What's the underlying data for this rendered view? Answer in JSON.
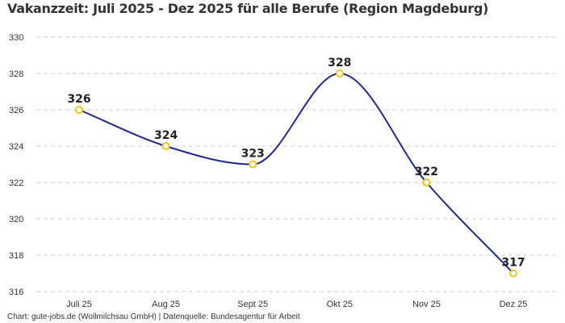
{
  "chart_data": {
    "type": "line",
    "title": "Vakanzzeit: Juli 2025 - Dez 2025 für alle Berufe (Region Magdeburg)",
    "categories": [
      "Juli 25",
      "Aug 25",
      "Sept 25",
      "Okt 25",
      "Nov 25",
      "Dez 25"
    ],
    "values": [
      326,
      324,
      323,
      328,
      322,
      317
    ],
    "ylim": [
      316,
      330
    ],
    "yticks": [
      316,
      318,
      320,
      322,
      324,
      326,
      328,
      330
    ],
    "xlabel": "",
    "ylabel": "",
    "grid": "horizontal dashed",
    "smooth": true,
    "colors": {
      "line": "#1c2a8a",
      "marker": "#f5c21b",
      "grid": "#cccccc"
    }
  },
  "footer": "Chart: gute-jobs.de (Wollmilchsau GmbH) | Datenquelle: Bundesagentur für Arbeit"
}
